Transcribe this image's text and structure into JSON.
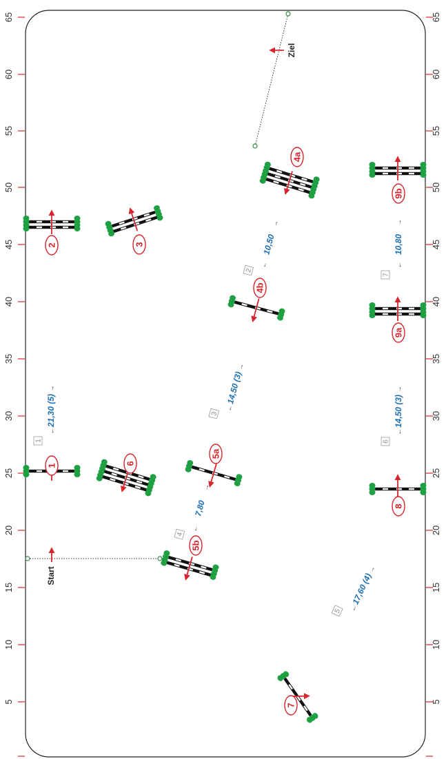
{
  "axis": {
    "ticks": [
      "5",
      "10",
      "15",
      "20",
      "25",
      "30",
      "35",
      "40",
      "45",
      "50",
      "55",
      "60",
      "65"
    ],
    "tick_color": "#d8242c"
  },
  "start_label": "Start",
  "finish_label": "Ziel",
  "jumps": [
    {
      "id": "1",
      "label": "1"
    },
    {
      "id": "2",
      "label": "2"
    },
    {
      "id": "3",
      "label": "3"
    },
    {
      "id": "4a",
      "label": "4a"
    },
    {
      "id": "4b",
      "label": "4b"
    },
    {
      "id": "5a",
      "label": "5a"
    },
    {
      "id": "5b",
      "label": "5b"
    },
    {
      "id": "6",
      "label": "6"
    },
    {
      "id": "7",
      "label": "7"
    },
    {
      "id": "8",
      "label": "8"
    },
    {
      "id": "9a",
      "label": "9a"
    },
    {
      "id": "9b",
      "label": "9b"
    }
  ],
  "distances": [
    {
      "num": "1",
      "value": "21,30 (5)"
    },
    {
      "num": "2",
      "value": "10,50"
    },
    {
      "num": "3",
      "value": "14,50 (3)"
    },
    {
      "num": "4",
      "value": "7,80"
    },
    {
      "num": "5",
      "value": "17,60 (4)"
    },
    {
      "num": "6",
      "value": "14,50 (3)"
    },
    {
      "num": "7",
      "value": "10,80"
    }
  ],
  "colors": {
    "arrow": "#d8242c",
    "foliage": "#1fa043",
    "distance": "#1d6fb5",
    "rail": "#111111"
  }
}
